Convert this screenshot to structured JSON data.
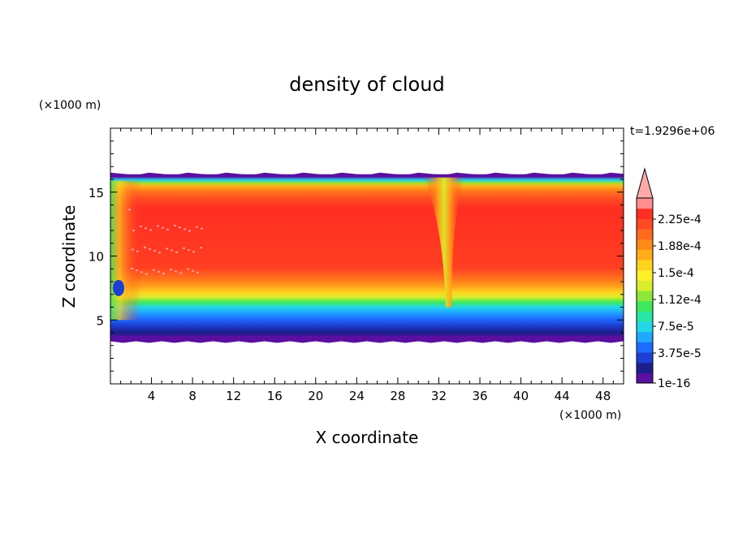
{
  "chart_data": {
    "type": "heatmap",
    "title": "density of cloud",
    "xlabel": "X coordinate",
    "ylabel": "Z coordinate",
    "x_unit": "(×1000 m)",
    "y_unit": "(×1000 m)",
    "time_label": "t=1.9296e+06",
    "xlim": [
      0,
      50
    ],
    "ylim": [
      0,
      20
    ],
    "x_ticks": [
      4,
      8,
      12,
      16,
      20,
      24,
      28,
      32,
      36,
      40,
      44,
      48
    ],
    "y_ticks": [
      5,
      10,
      15
    ],
    "grid": false,
    "colorbar": {
      "labels": [
        "1e-16",
        "3.75e-5",
        "7.5e-5",
        "1.12e-4",
        "1.5e-4",
        "1.88e-4",
        "2.25e-4"
      ],
      "colors": [
        "#5a0fa0",
        "#1a1f8c",
        "#1d3fd4",
        "#1e6cff",
        "#1fa8ff",
        "#22d8e8",
        "#28e6a6",
        "#3ee85a",
        "#8ee83a",
        "#d8ee2c",
        "#fff02a",
        "#ffd21e",
        "#ffae1a",
        "#ff8a18",
        "#ff6a1e",
        "#ff4a22",
        "#ff2e22",
        "#ff8e8e"
      ],
      "overflow_color": "#ffaaaa"
    },
    "cloud": {
      "base_z": 3.4,
      "top_z": 16.4,
      "core_z": [
        8.5,
        14.2
      ],
      "core_value": 0.00023,
      "downdraft_x": 32.5,
      "left_edge_disturbance_x": [
        0,
        3
      ]
    }
  }
}
